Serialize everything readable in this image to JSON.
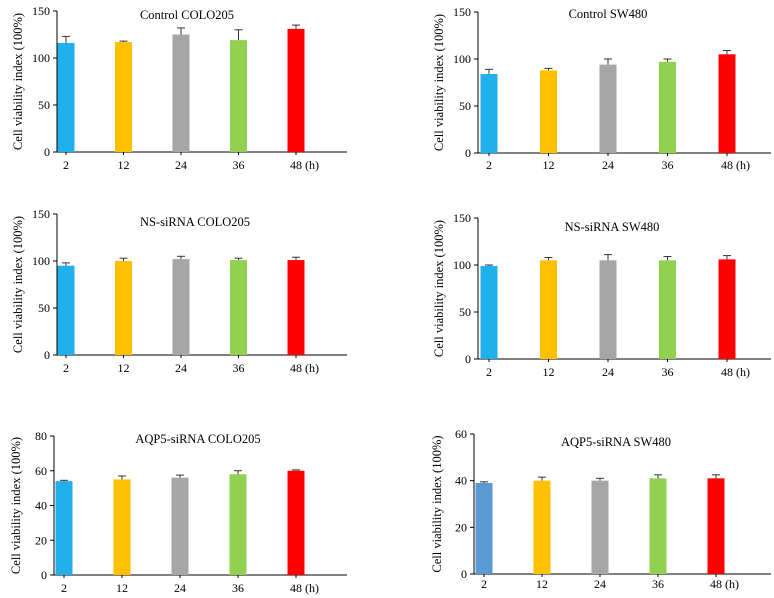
{
  "colors": {
    "bar_2": "#22b0ec",
    "bar_12": "#ffc000",
    "bar_24": "#a6a6a6",
    "bar_36": "#92d050",
    "bar_48": "#ff0000",
    "bar_2_alt": "#5b9bd5"
  },
  "chart_data": [
    {
      "type": "bar",
      "title": "Control    COLO205",
      "ylabel": "Cell viability index (100%)",
      "categories": [
        "2",
        "12",
        "24",
        "36",
        "48"
      ],
      "x_unit_label": "(h)",
      "values": [
        116,
        117,
        125,
        119,
        131
      ],
      "errors": [
        7,
        1,
        7,
        11,
        4
      ],
      "ylim": [
        0,
        150
      ],
      "yticks": [
        0,
        50,
        100,
        150
      ]
    },
    {
      "type": "bar",
      "title": "Control   SW480",
      "ylabel": "Cell viability index (100%)",
      "categories": [
        "2",
        "12",
        "24",
        "36",
        "48"
      ],
      "x_unit_label": "(h)",
      "values": [
        84,
        88,
        94,
        97,
        105
      ],
      "errors": [
        5,
        2,
        6,
        3,
        4
      ],
      "ylim": [
        0,
        150
      ],
      "yticks": [
        0,
        50,
        100,
        150
      ]
    },
    {
      "type": "bar",
      "title": "NS-siRNA COLO205",
      "ylabel": "Cell viability index (100%)",
      "categories": [
        "2",
        "12",
        "24",
        "36",
        "48"
      ],
      "x_unit_label": "(h)",
      "values": [
        95,
        100,
        102,
        101,
        101
      ],
      "errors": [
        3,
        3,
        3,
        2,
        3
      ],
      "ylim": [
        0,
        150
      ],
      "yticks": [
        0,
        50,
        100,
        150
      ]
    },
    {
      "type": "bar",
      "title": "NS-siRNA SW480",
      "ylabel": "Cell viability index (100%)",
      "categories": [
        "2",
        "12",
        "24",
        "36",
        "48"
      ],
      "x_unit_label": "(h)",
      "values": [
        99,
        105,
        105,
        105,
        106
      ],
      "errors": [
        1,
        3,
        6,
        4,
        4
      ],
      "ylim": [
        0,
        150
      ],
      "yticks": [
        0,
        50,
        100,
        150
      ]
    },
    {
      "type": "bar",
      "title": "AQP5-siRNA COLO205",
      "ylabel": "Cell viability index (100%)",
      "categories": [
        "2",
        "12",
        "24",
        "36",
        "48"
      ],
      "x_unit_label": "(h)",
      "values": [
        54,
        55,
        56,
        58,
        60
      ],
      "errors": [
        0.5,
        2,
        1.5,
        2,
        0.5
      ],
      "ylim": [
        0,
        80
      ],
      "yticks": [
        0,
        20,
        40,
        60,
        80
      ]
    },
    {
      "type": "bar",
      "title": "AQP5-siRNA SW480",
      "ylabel": "Cell viability index (100%)",
      "categories": [
        "2",
        "12",
        "24",
        "36",
        "48"
      ],
      "x_unit_label": "(h)",
      "values": [
        39,
        40,
        40,
        41,
        41
      ],
      "errors": [
        0.5,
        1.5,
        1,
        1.5,
        1.5
      ],
      "ylim": [
        0,
        60
      ],
      "yticks": [
        0,
        20,
        40,
        60
      ]
    }
  ]
}
